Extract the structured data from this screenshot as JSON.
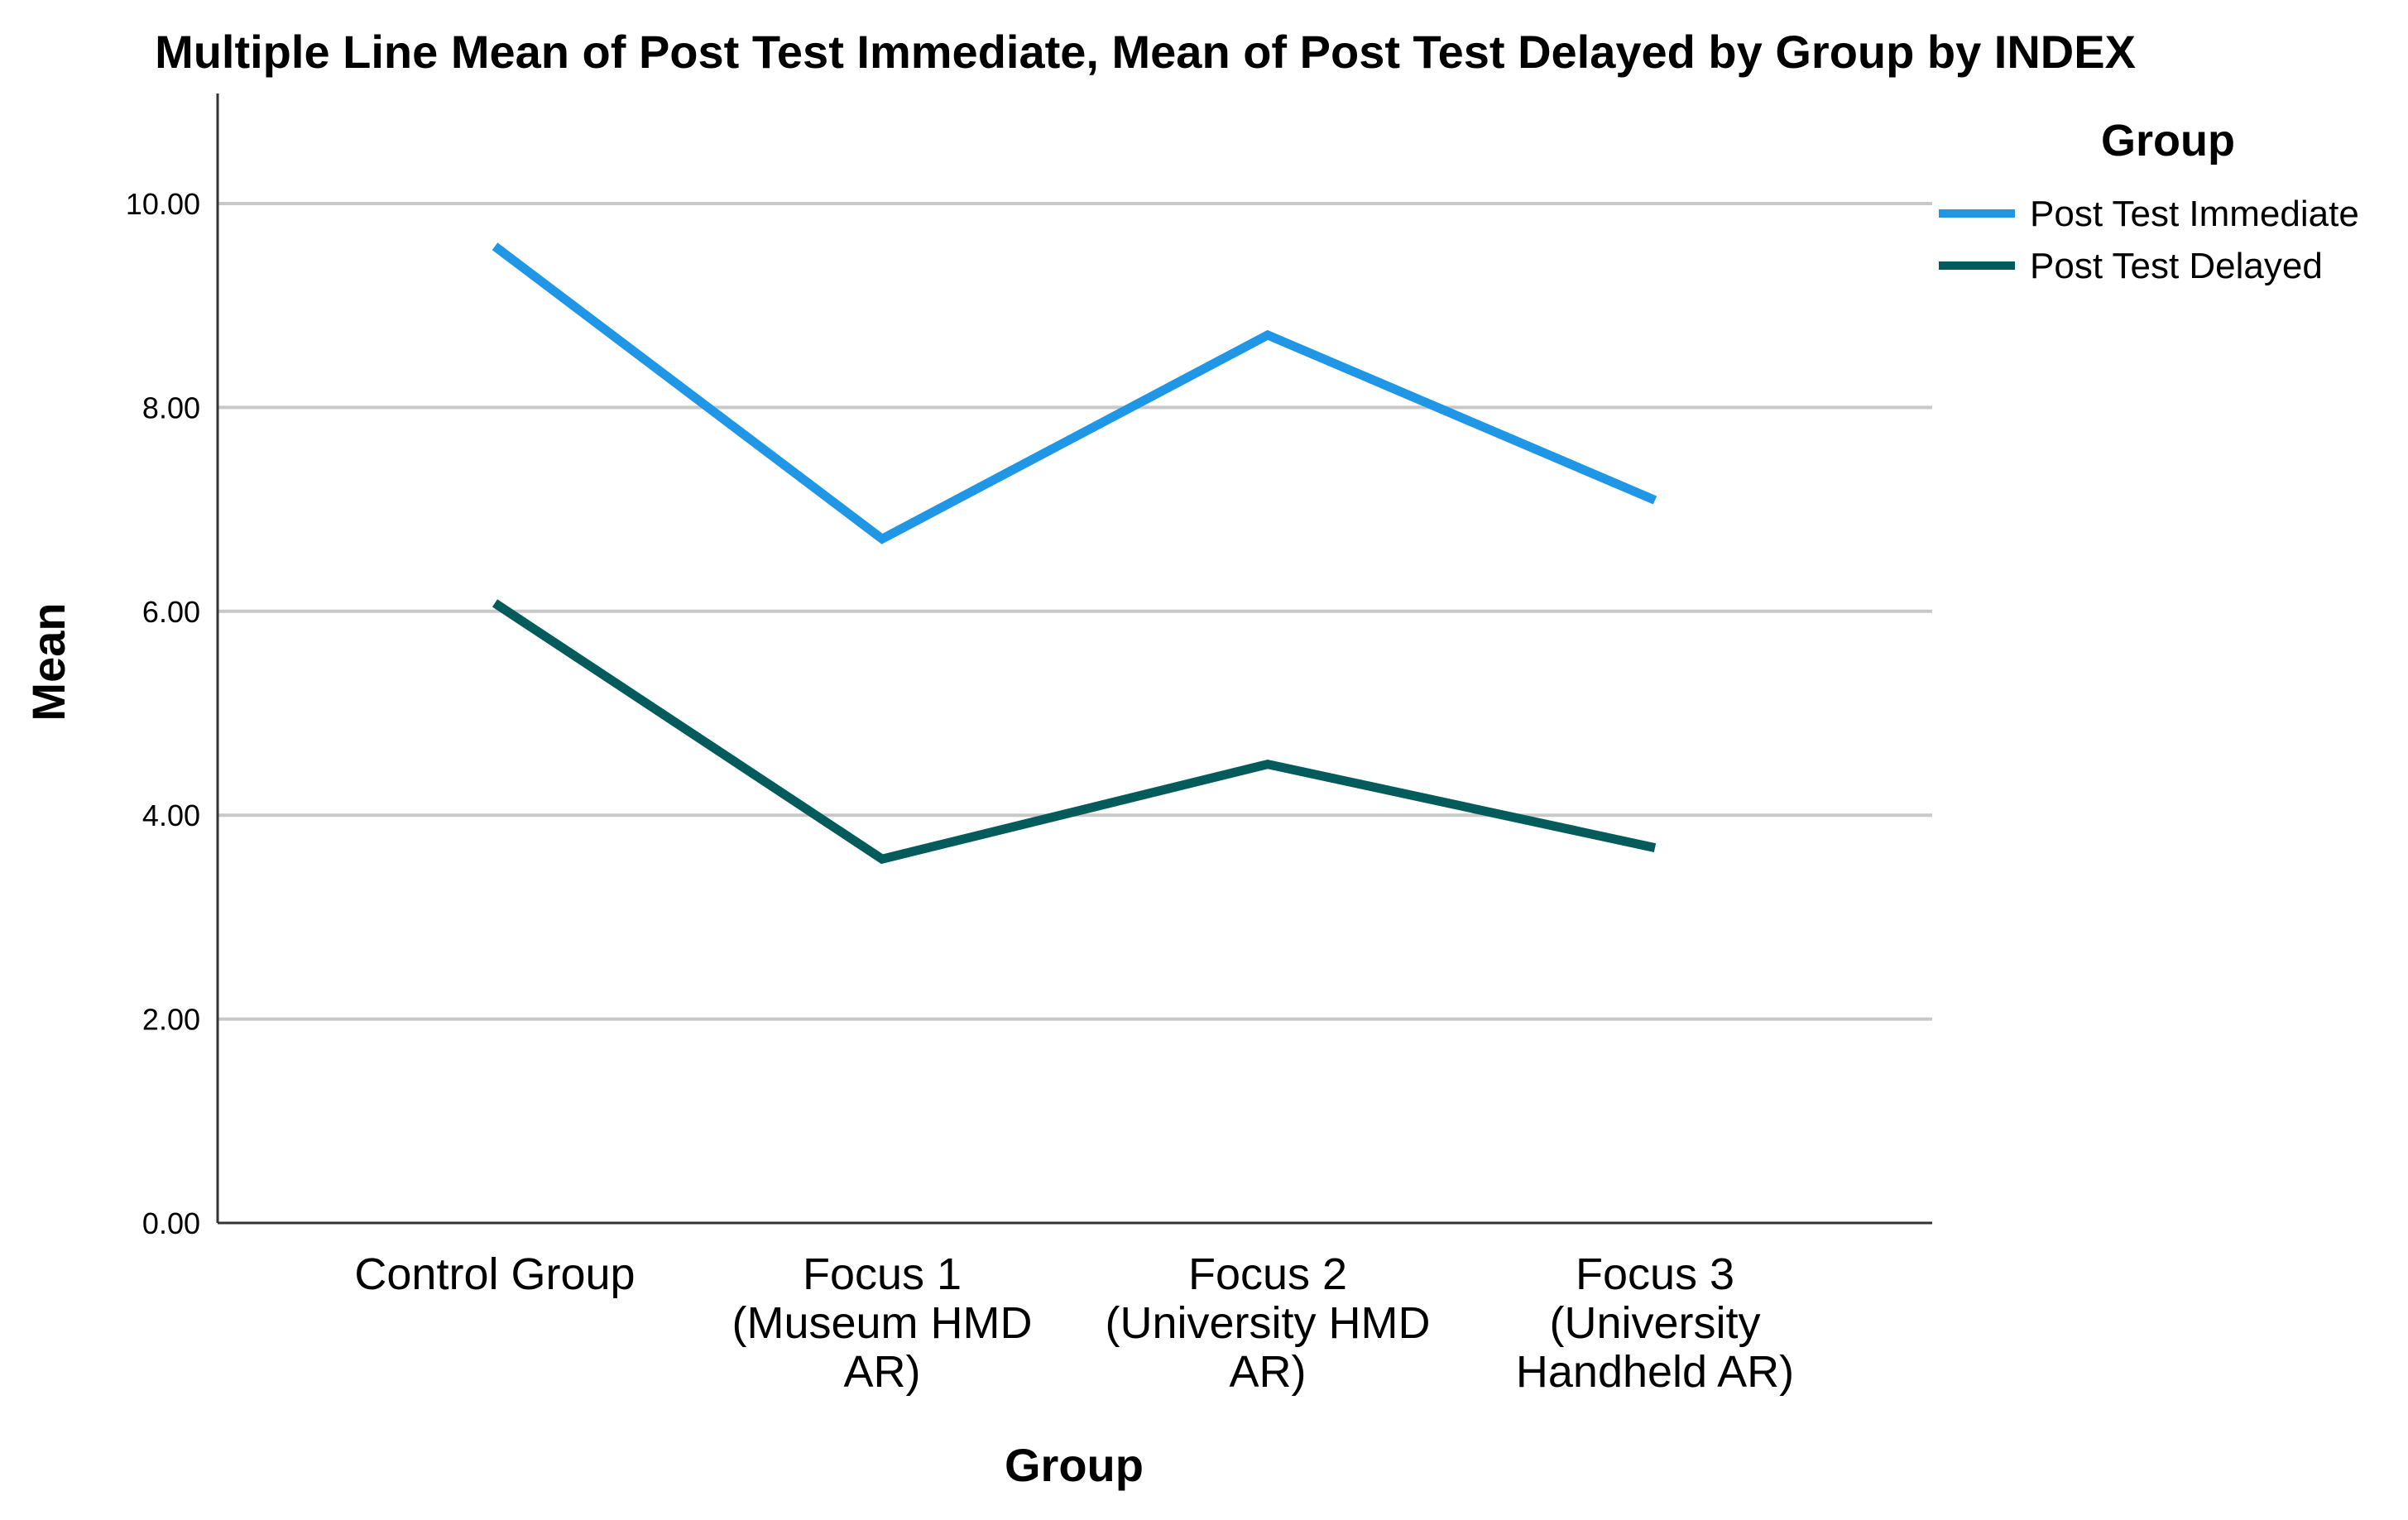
{
  "chart_data": {
    "type": "line",
    "title": "Multiple Line Mean of Post Test Immediate, Mean of Post Test Delayed by Group by INDEX",
    "xlabel": "Group",
    "ylabel": "Mean",
    "ylim": [
      0,
      11
    ],
    "yticks": [
      0,
      2,
      4,
      6,
      8,
      10
    ],
    "ytick_labels": [
      "0.00",
      "2.00",
      "4.00",
      "6.00",
      "8.00",
      "10.00"
    ],
    "grid": true,
    "categories": [
      [
        "Control Group"
      ],
      [
        "Focus 1",
        "(Museum HMD",
        "AR)"
      ],
      [
        "Focus 2",
        "(University HMD",
        "AR)"
      ],
      [
        "Focus 3",
        "(University",
        "Handheld AR)"
      ]
    ],
    "series": [
      {
        "name": "Post Test Immediate",
        "color": "#1f97e6",
        "values": [
          9.58,
          6.71,
          8.71,
          7.09
        ]
      },
      {
        "name": "Post Test Delayed",
        "color": "#045b5b",
        "values": [
          6.08,
          3.57,
          4.5,
          3.68
        ]
      }
    ],
    "legend": {
      "title": "Group",
      "placement": "top-right"
    }
  }
}
